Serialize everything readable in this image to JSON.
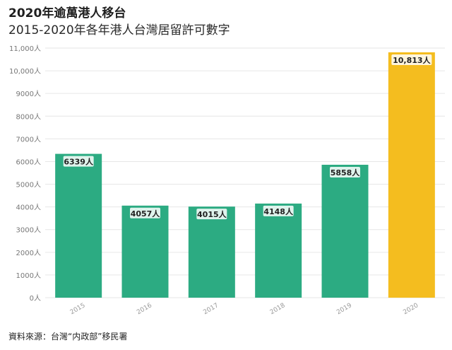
{
  "header": {
    "title": "2020年逾萬港人移台",
    "subtitle": "2015-2020年各年港人台灣居留許可數字"
  },
  "source": "資料來源：台灣“内政部”移民署",
  "colors": {
    "default_bar": "#2cab82",
    "highlight_bar": "#f4bd1f",
    "grid": "#e6e6e6",
    "axis_text": "#777777"
  },
  "chart_data": {
    "type": "bar",
    "categories": [
      "2015",
      "2016",
      "2017",
      "2018",
      "2019",
      "2020"
    ],
    "values": [
      6339,
      4057,
      4015,
      4148,
      5858,
      10813
    ],
    "data_labels": [
      "6339人",
      "4057人",
      "4015人",
      "4148人",
      "5858人",
      "10,813人"
    ],
    "highlight": [
      "2020"
    ],
    "ylim": [
      0,
      11000
    ],
    "yticks": [
      0,
      1000,
      2000,
      3000,
      4000,
      5000,
      6000,
      7000,
      8000,
      9000,
      10000,
      11000
    ],
    "ytick_labels": [
      "0人",
      "1000人",
      "2000人",
      "3000人",
      "4000人",
      "5000人",
      "6000人",
      "7000人",
      "8000人",
      "9000人",
      "10,000人",
      "11,000人"
    ],
    "grid": true,
    "xlabel": "",
    "ylabel": ""
  }
}
